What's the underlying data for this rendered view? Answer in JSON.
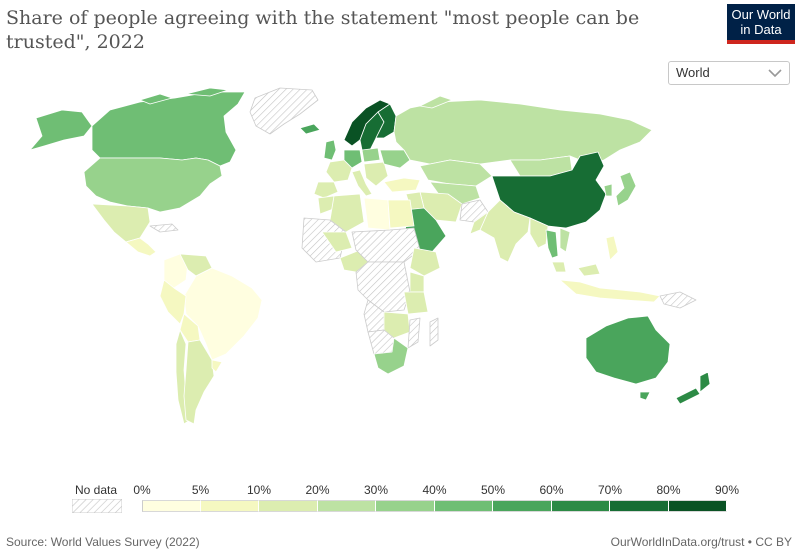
{
  "title": "Share of people agreeing with the statement \"most people can be trusted\", 2022",
  "logo": {
    "line1": "Our World",
    "line2": "in Data",
    "bg": "#002147",
    "accent": "#ce261e"
  },
  "region_selector": {
    "value": "World",
    "icon": "chevron-down-icon"
  },
  "legend": {
    "no_data_label": "No data",
    "ticks": [
      "0%",
      "5%",
      "10%",
      "20%",
      "30%",
      "40%",
      "50%",
      "60%",
      "70%",
      "80%",
      "90%"
    ],
    "colors": [
      "#fffee0",
      "#f5f8c1",
      "#dcedb0",
      "#bde2a3",
      "#97d28c",
      "#6fbe74",
      "#4aa55c",
      "#2c8a45",
      "#176d34",
      "#0a5224"
    ]
  },
  "source": "Source: World Values Survey (2022)",
  "attribution": "OurWorldInData.org/trust • CC BY"
}
